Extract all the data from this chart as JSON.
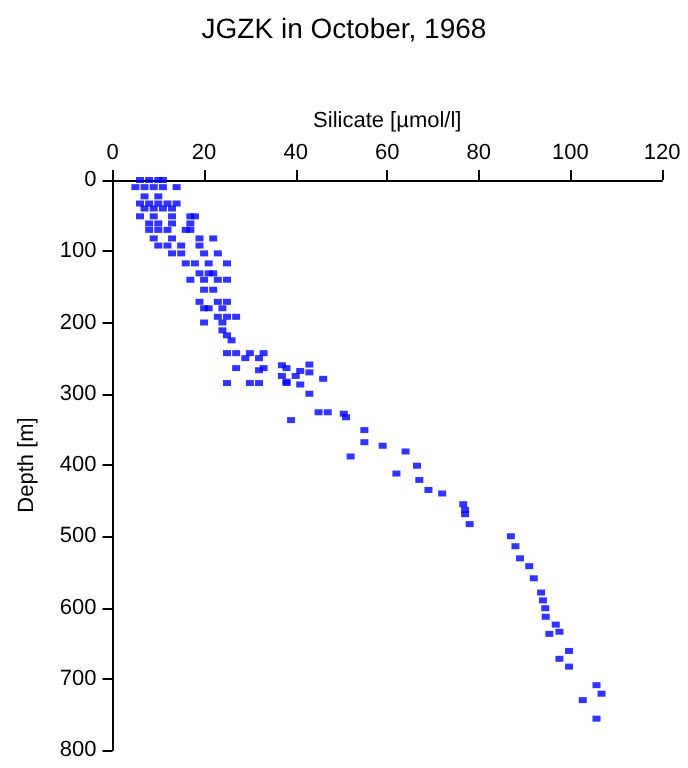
{
  "chart_data": {
    "type": "scatter",
    "title": "JGZK in October, 1968",
    "xlabel": "Silicate [µmol/l]",
    "ylabel": "Depth [m]",
    "xlim": [
      0,
      120
    ],
    "xticks": [
      0,
      20,
      40,
      60,
      80,
      100,
      120
    ],
    "ylim": [
      800,
      0
    ],
    "yticks": [
      0,
      100,
      200,
      300,
      400,
      500,
      600,
      700,
      800
    ],
    "marker": "square",
    "series": [
      {
        "color": "#0000ff",
        "x": [
          6,
          8,
          10,
          11,
          5,
          7,
          9,
          11,
          14,
          7,
          10,
          6,
          8,
          10,
          12,
          14,
          7,
          9,
          11,
          13,
          6,
          9,
          13,
          17,
          18,
          8,
          10,
          13,
          17,
          8,
          10,
          12,
          16,
          17,
          9,
          13,
          19,
          22,
          10,
          12,
          15,
          19,
          13,
          15,
          20,
          23,
          16,
          18,
          21,
          25,
          19,
          21,
          22,
          17,
          20,
          23,
          25,
          20,
          22,
          19,
          23,
          25,
          24,
          20,
          21,
          23,
          25,
          27,
          20,
          24,
          24,
          25,
          26,
          25,
          27,
          30,
          33,
          29,
          32,
          27,
          33,
          38,
          37,
          40,
          25,
          30,
          38,
          32,
          37,
          41,
          43,
          43,
          32,
          38,
          46,
          41,
          43,
          45,
          47,
          50.5,
          51,
          39,
          55,
          55,
          59,
          52,
          64,
          66.5,
          62,
          67,
          69,
          72,
          76.6,
          77,
          77,
          78,
          87,
          88,
          89,
          91,
          92,
          93.6,
          94,
          94.5,
          94.6,
          96.8,
          95.4,
          97.6,
          99.7,
          97.6,
          99.7,
          105.7,
          106.8,
          102.7,
          105.7
        ],
        "values": [
          0,
          0,
          0,
          0,
          10,
          10,
          10,
          10,
          10,
          23,
          23,
          33,
          33,
          33,
          33,
          33,
          40,
          40,
          40,
          40,
          51,
          51,
          51,
          51,
          51,
          61,
          61,
          61,
          61,
          70,
          70,
          70,
          70,
          70,
          82,
          82,
          82,
          82,
          92,
          92,
          92,
          92,
          103,
          103,
          103,
          103,
          117,
          117,
          117,
          117,
          131,
          131,
          131,
          140,
          140,
          140,
          140,
          154,
          154,
          171,
          171,
          171,
          180,
          180,
          180,
          192,
          192,
          192,
          200,
          200,
          211,
          218,
          225,
          243,
          243,
          243,
          243,
          250,
          250,
          264,
          264,
          264,
          275,
          275,
          285,
          285,
          285,
          267,
          260,
          268,
          259,
          270,
          285,
          283,
          279,
          287,
          300,
          326,
          326,
          328,
          333,
          337,
          351,
          368,
          373,
          388,
          381,
          401,
          412,
          421,
          435,
          440,
          455,
          463,
          469,
          483,
          500,
          514,
          531,
          542,
          559,
          579,
          590,
          601,
          613,
          624,
          637,
          634,
          661,
          672,
          683,
          709,
          721,
          730,
          756
        ]
      }
    ]
  }
}
